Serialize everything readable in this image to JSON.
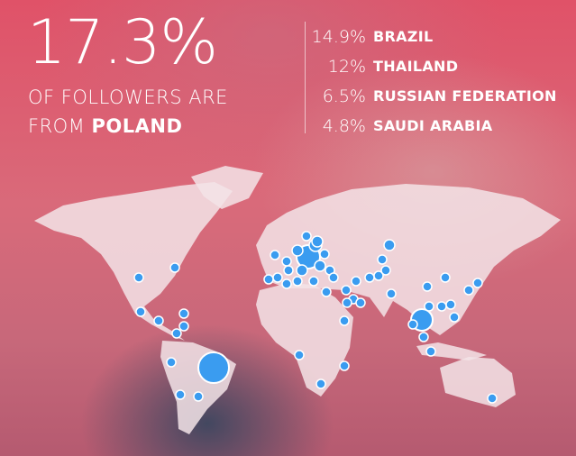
{
  "headline": {
    "percent": "17.3%",
    "line1": "OF FOLLOWERS ARE",
    "line2_prefix": "FROM",
    "country": "POLAND"
  },
  "top_countries": [
    {
      "percent": "14.9%",
      "country": "BRAZIL"
    },
    {
      "percent": "12%",
      "country": "THAILAND"
    },
    {
      "percent": "6.5%",
      "country": "RUSSIAN FEDERATION"
    },
    {
      "percent": "4.8%",
      "country": "SAUDI ARABIA"
    }
  ],
  "colors": {
    "dot": "#3a9cf0",
    "dot_outline": "#ffffff",
    "land": "#f3e4e8",
    "accent": "#e05268"
  }
}
